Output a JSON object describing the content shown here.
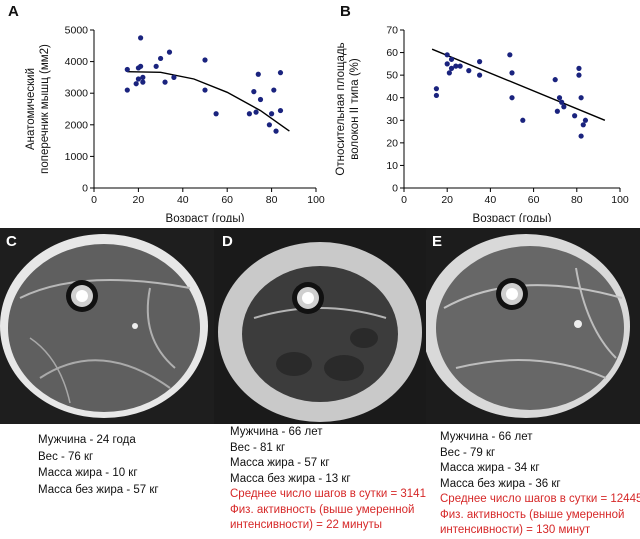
{
  "chart_data": [
    {
      "type": "scatter",
      "panel": "A",
      "title": "",
      "xlabel": "Возраст (годы)",
      "ylabel_lines": [
        "Анатомический",
        "поперечник мышц (мм2)"
      ],
      "xlim": [
        0,
        100
      ],
      "ylim": [
        0,
        5000
      ],
      "xticks": [
        0,
        20,
        40,
        60,
        80,
        100
      ],
      "yticks": [
        0,
        1000,
        2000,
        3000,
        4000,
        5000
      ],
      "points": [
        [
          15,
          3750
        ],
        [
          15,
          3100
        ],
        [
          19,
          3300
        ],
        [
          20,
          3800
        ],
        [
          20,
          3450
        ],
        [
          21,
          4750
        ],
        [
          21,
          3850
        ],
        [
          22,
          3500
        ],
        [
          22,
          3350
        ],
        [
          28,
          3850
        ],
        [
          30,
          4100
        ],
        [
          32,
          3350
        ],
        [
          34,
          4300
        ],
        [
          36,
          3500
        ],
        [
          50,
          4050
        ],
        [
          50,
          3100
        ],
        [
          55,
          2350
        ],
        [
          70,
          2350
        ],
        [
          72,
          3050
        ],
        [
          73,
          2400
        ],
        [
          74,
          3600
        ],
        [
          75,
          2800
        ],
        [
          79,
          2000
        ],
        [
          80,
          2350
        ],
        [
          81,
          3100
        ],
        [
          82,
          1800
        ],
        [
          84,
          2450
        ],
        [
          84,
          3650
        ]
      ],
      "trend": [
        [
          15,
          3680
        ],
        [
          30,
          3660
        ],
        [
          45,
          3450
        ],
        [
          60,
          3030
        ],
        [
          75,
          2450
        ],
        [
          88,
          1800
        ]
      ],
      "marker_color": "#1a237e",
      "line_color": "#000000"
    },
    {
      "type": "scatter",
      "panel": "B",
      "title": "",
      "xlabel": "Возраст (годы)",
      "ylabel_lines": [
        "Относительная площадь",
        "волокон II типа (%)"
      ],
      "xlim": [
        0,
        100
      ],
      "ylim": [
        0,
        70
      ],
      "xticks": [
        0,
        20,
        40,
        60,
        80,
        100
      ],
      "yticks": [
        0,
        10,
        20,
        30,
        40,
        50,
        60,
        70
      ],
      "points": [
        [
          15,
          44
        ],
        [
          15,
          41
        ],
        [
          20,
          59
        ],
        [
          20,
          55
        ],
        [
          21,
          51
        ],
        [
          22,
          57
        ],
        [
          22,
          53
        ],
        [
          24,
          54
        ],
        [
          26,
          54
        ],
        [
          30,
          52
        ],
        [
          35,
          50
        ],
        [
          35,
          56
        ],
        [
          49,
          59
        ],
        [
          50,
          51
        ],
        [
          50,
          40
        ],
        [
          55,
          30
        ],
        [
          70,
          48
        ],
        [
          71,
          34
        ],
        [
          72,
          40
        ],
        [
          73,
          38
        ],
        [
          74,
          36
        ],
        [
          79,
          32
        ],
        [
          81,
          53
        ],
        [
          81,
          50
        ],
        [
          82,
          40
        ],
        [
          82,
          23
        ],
        [
          83,
          28
        ],
        [
          84,
          30
        ]
      ],
      "trend": [
        [
          13,
          61.5
        ],
        [
          93,
          30
        ]
      ],
      "marker_color": "#1a237e",
      "line_color": "#000000"
    }
  ],
  "panels": {
    "a_letter": "A",
    "b_letter": "B",
    "c_letter": "C",
    "d_letter": "D",
    "e_letter": "E"
  },
  "captions": {
    "c": {
      "sex_age": "Мужчина - 24 года",
      "weight": "Вес - 76 кг",
      "fat_mass": "Масса жира - 10 кг",
      "lean_mass": "Масса без жира - 57 кг"
    },
    "d": {
      "sex_age": "Мужчина - 66 лет",
      "weight": "Вес - 81 кг",
      "fat_mass": "Масса жира - 57 кг",
      "lean_mass": "Масса без жира - 13 кг",
      "steps": "Среднее число шагов в сутки = 3141",
      "activity_1": "Физ. активность (выше умеренной",
      "activity_2": "интенсивности) = 22 минуты"
    },
    "e": {
      "sex_age": "Мужчина - 66 лет",
      "weight": "Вес - 79 кг",
      "fat_mass": "Масса жира - 34 кг",
      "lean_mass": "Масса без жира - 36 кг",
      "steps": "Среднее число шагов в сутки = 12445",
      "activity_1": "Физ. активность (выше умеренной",
      "activity_2": "интенсивности) = 130 минут"
    }
  },
  "colors": {
    "caption_red": "#d62828",
    "marker": "#1a237e"
  }
}
